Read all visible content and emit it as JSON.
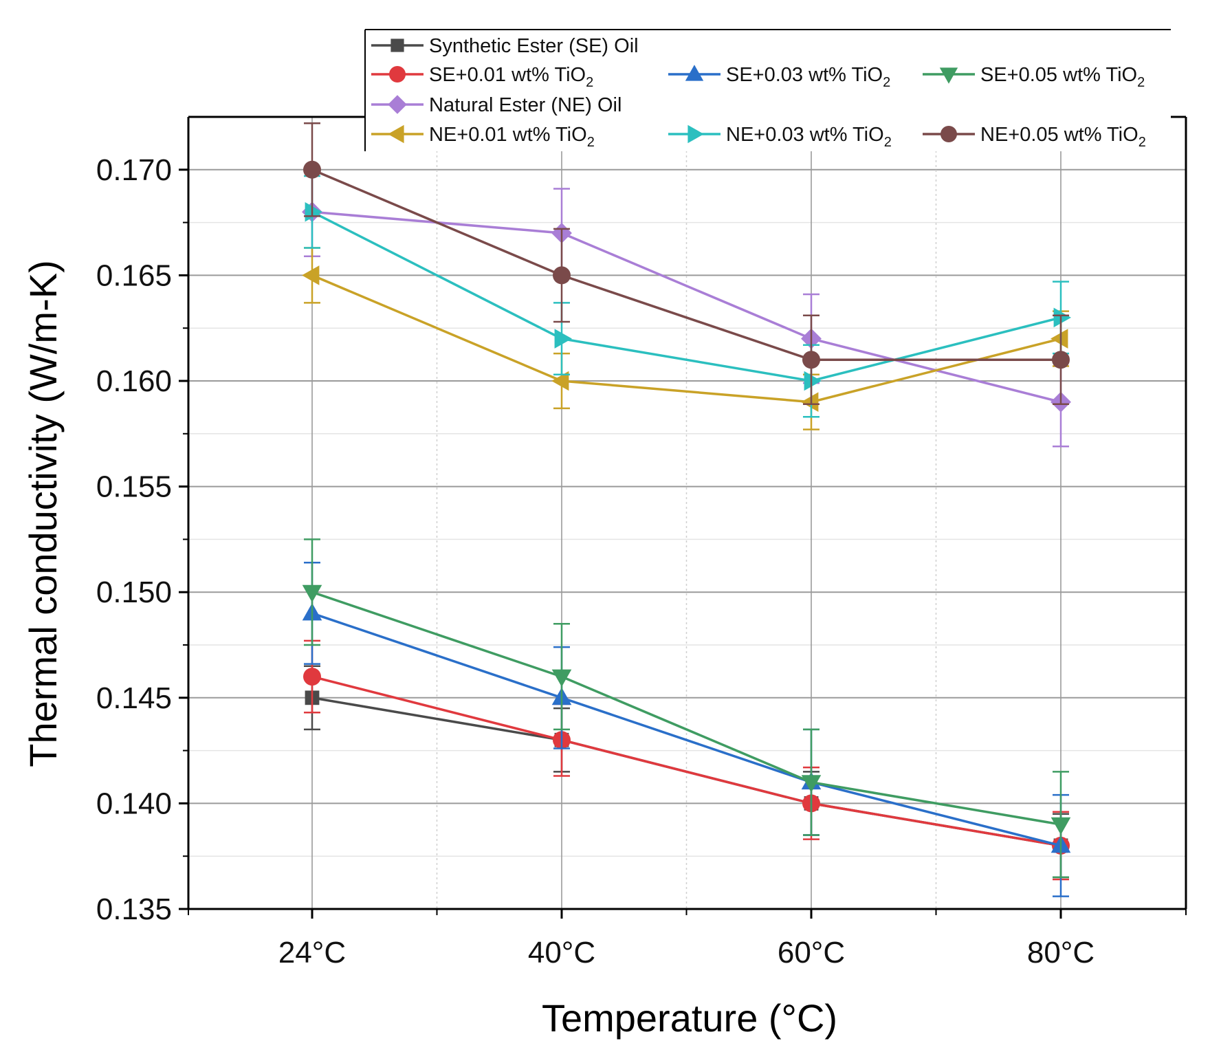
{
  "chart_data": {
    "type": "line",
    "title": "",
    "xlabel": "Temperature (°C)",
    "ylabel": "Thermal conductivity (W/m-K)",
    "categories": [
      "24°C",
      "40°C",
      "60°C",
      "80°C"
    ],
    "ylim": [
      0.135,
      0.1725
    ],
    "yticks": [
      "0.135",
      "0.140",
      "0.145",
      "0.150",
      "0.155",
      "0.160",
      "0.165",
      "0.170"
    ],
    "ytick_values": [
      0.135,
      0.14,
      0.145,
      0.15,
      0.155,
      0.16,
      0.165,
      0.17
    ],
    "grid": true,
    "legend_position": "top",
    "series": [
      {
        "name": "Synthetic Ester (SE) Oil",
        "label_main": "Synthetic Ester (SE) Oil",
        "label_sub": "",
        "marker": "square",
        "color": "#4a4a4a",
        "values": [
          0.145,
          0.143,
          0.14,
          0.138
        ],
        "errors": [
          0.0015,
          0.0015,
          0.0015,
          0.0015
        ]
      },
      {
        "name": "SE+0.01 wt% TiO2",
        "label_main": "SE+0.01 wt% TiO",
        "label_sub": "2",
        "marker": "circle",
        "color": "#e0393e",
        "values": [
          0.146,
          0.143,
          0.14,
          0.138
        ],
        "errors": [
          0.0017,
          0.0017,
          0.0017,
          0.0016
        ]
      },
      {
        "name": "SE+0.03 wt% TiO2",
        "label_main": "SE+0.03 wt% TiO",
        "label_sub": "2",
        "marker": "triangle-up",
        "color": "#2a6fc9",
        "values": [
          0.149,
          0.145,
          0.141,
          0.138
        ],
        "errors": [
          0.0024,
          0.0024,
          0.0025,
          0.0024
        ]
      },
      {
        "name": "SE+0.05 wt% TiO2",
        "label_main": "SE+0.05 wt% TiO",
        "label_sub": "2",
        "marker": "triangle-down",
        "color": "#3f9c62",
        "values": [
          0.15,
          0.146,
          0.141,
          0.139
        ],
        "errors": [
          0.0025,
          0.0025,
          0.0025,
          0.0025
        ]
      },
      {
        "name": "Natural Ester (NE) Oil",
        "label_main": "Natural Ester (NE) Oil",
        "label_sub": "",
        "marker": "diamond",
        "color": "#a97ed6",
        "values": [
          0.168,
          0.167,
          0.162,
          0.159
        ],
        "errors": [
          0.0021,
          0.0021,
          0.0021,
          0.0021
        ]
      },
      {
        "name": "NE+0.01 wt% TiO2",
        "label_main": "NE+0.01 wt% TiO",
        "label_sub": "2",
        "marker": "triangle-left",
        "color": "#c9a227",
        "values": [
          0.165,
          0.16,
          0.159,
          0.162
        ],
        "errors": [
          0.0013,
          0.0013,
          0.0013,
          0.0013
        ]
      },
      {
        "name": "NE+0.03 wt% TiO2",
        "label_main": "NE+0.03 wt% TiO",
        "label_sub": "2",
        "marker": "triangle-right",
        "color": "#2bbfbf",
        "values": [
          0.168,
          0.162,
          0.16,
          0.163
        ],
        "errors": [
          0.0017,
          0.0017,
          0.0017,
          0.0017
        ]
      },
      {
        "name": "NE+0.05 wt% TiO2",
        "label_main": "NE+0.05 wt% TiO",
        "label_sub": "2",
        "marker": "circle",
        "color": "#7a4a4a",
        "values": [
          0.17,
          0.165,
          0.161,
          0.161
        ],
        "errors": [
          0.0022,
          0.0022,
          0.0021,
          0.0021
        ]
      }
    ]
  }
}
